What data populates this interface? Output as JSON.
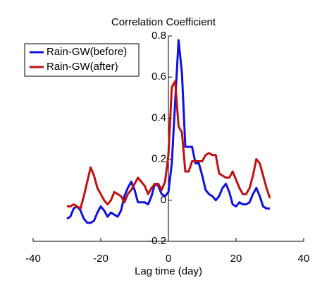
{
  "chart_data": {
    "type": "line",
    "title": "Correlation Coefficient",
    "xlabel": "Lag time (day)",
    "x": [
      -30,
      -29,
      -28,
      -27,
      -26,
      -25,
      -24,
      -23,
      -22,
      -21,
      -20,
      -19,
      -18,
      -17,
      -16,
      -15,
      -14,
      -13,
      -12,
      -11,
      -10,
      -9,
      -8,
      -7,
      -6,
      -5,
      -4,
      -3,
      -2,
      -1,
      0,
      1,
      2,
      3,
      4,
      5,
      6,
      7,
      8,
      9,
      10,
      11,
      12,
      13,
      14,
      15,
      16,
      17,
      18,
      19,
      20,
      21,
      22,
      23,
      24,
      25,
      26,
      27,
      28,
      29,
      30
    ],
    "series": [
      {
        "name": "Rain-GW(before)",
        "color": "#1010e0",
        "values": [
          -0.09,
          -0.08,
          -0.04,
          -0.03,
          -0.05,
          -0.09,
          -0.11,
          -0.11,
          -0.1,
          -0.06,
          -0.03,
          -0.05,
          -0.08,
          -0.06,
          -0.07,
          -0.08,
          -0.05,
          0.02,
          0.06,
          0.09,
          0.05,
          -0.01,
          -0.01,
          -0.01,
          -0.02,
          0.02,
          0.08,
          0.07,
          0.03,
          0.02,
          0.04,
          0.18,
          0.48,
          0.78,
          0.62,
          0.26,
          0.26,
          0.26,
          0.18,
          0.18,
          0.12,
          0.05,
          0.03,
          0.02,
          0.0,
          0.02,
          0.06,
          0.08,
          0.04,
          -0.02,
          -0.03,
          -0.01,
          -0.02,
          -0.02,
          -0.01,
          0.03,
          0.06,
          0.02,
          -0.03,
          -0.04,
          -0.04
        ]
      },
      {
        "name": "Rain-GW(after)",
        "color": "#c01010",
        "values": [
          -0.03,
          -0.03,
          -0.02,
          -0.03,
          -0.04,
          0.02,
          0.09,
          0.16,
          0.12,
          0.06,
          0.03,
          0.0,
          -0.02,
          0.0,
          0.04,
          0.03,
          0.02,
          -0.01,
          0.03,
          0.05,
          0.08,
          0.11,
          0.09,
          0.07,
          0.03,
          0.06,
          0.08,
          0.08,
          0.05,
          0.09,
          0.22,
          0.55,
          0.58,
          0.36,
          0.33,
          0.14,
          0.14,
          0.19,
          0.19,
          0.19,
          0.19,
          0.22,
          0.23,
          0.22,
          0.22,
          0.13,
          0.12,
          0.11,
          0.11,
          0.14,
          0.1,
          0.06,
          0.03,
          0.03,
          0.06,
          0.12,
          0.2,
          0.18,
          0.12,
          0.06,
          0.01
        ]
      }
    ],
    "xlim": [
      -40,
      40
    ],
    "xticks": [
      -40,
      -20,
      0,
      20,
      40
    ],
    "ylim": [
      -0.2,
      0.8
    ],
    "yticks": [
      -0.2,
      0,
      0.2,
      0.4,
      0.6,
      0.8
    ],
    "legend": "upper left"
  }
}
